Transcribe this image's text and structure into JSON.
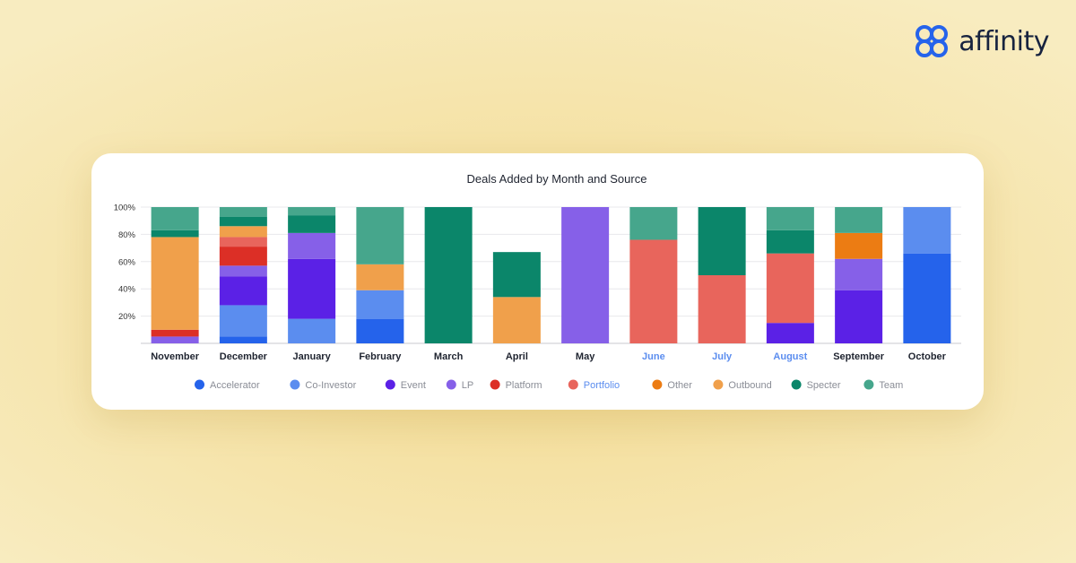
{
  "brand": {
    "name": "affinity",
    "logo_icon": "affinity-logo-icon",
    "color": "#2563eb"
  },
  "chart_data": {
    "type": "bar",
    "stacked": true,
    "title": "Deals Added by Month and Source",
    "xlabel": "",
    "ylabel": "",
    "ylim": [
      0,
      100
    ],
    "yticks": [
      "20%",
      "40%",
      "60%",
      "80%",
      "100%"
    ],
    "grid": true,
    "legend_position": "bottom",
    "categories": [
      "November",
      "December",
      "January",
      "February",
      "March",
      "April",
      "May",
      "June",
      "July",
      "August",
      "September",
      "October"
    ],
    "highlighted_categories": [
      "June",
      "July",
      "August"
    ],
    "highlighted_legend": [
      "Portfolio"
    ],
    "series": [
      {
        "name": "Accelerator",
        "color": "#2563eb",
        "values": [
          0,
          5,
          0,
          18,
          0,
          0,
          0,
          0,
          0,
          0,
          0,
          66
        ]
      },
      {
        "name": "Co-Investor",
        "color": "#5b8def",
        "values": [
          0,
          23,
          18,
          21,
          0,
          0,
          0,
          0,
          0,
          0,
          0,
          34
        ]
      },
      {
        "name": "Event",
        "color": "#5b21e6",
        "values": [
          0,
          21,
          44,
          0,
          0,
          0,
          0,
          0,
          0,
          15,
          39,
          0
        ]
      },
      {
        "name": "LP",
        "color": "#8660e8",
        "values": [
          5,
          8,
          19,
          0,
          0,
          0,
          100,
          0,
          0,
          0,
          23,
          0
        ]
      },
      {
        "name": "Platform",
        "color": "#dc2f26",
        "values": [
          5,
          14,
          0,
          0,
          0,
          0,
          0,
          0,
          0,
          0,
          0,
          0
        ]
      },
      {
        "name": "Portfolio",
        "color": "#e8655c",
        "values": [
          0,
          7,
          0,
          0,
          0,
          0,
          0,
          76,
          50,
          51,
          0,
          0
        ]
      },
      {
        "name": "Other",
        "color": "#ec7c13",
        "values": [
          0,
          0,
          0,
          0,
          0,
          0,
          0,
          0,
          0,
          0,
          19,
          0
        ]
      },
      {
        "name": "Outbound",
        "color": "#f0a04b",
        "values": [
          68,
          8,
          0,
          19,
          0,
          34,
          0,
          0,
          0,
          0,
          0,
          0
        ]
      },
      {
        "name": "Specter",
        "color": "#0b866a",
        "values": [
          5,
          7,
          13,
          0,
          100,
          33,
          0,
          0,
          50,
          17,
          0,
          0
        ]
      },
      {
        "name": "Team",
        "color": "#46a68c",
        "values": [
          17,
          7,
          6,
          42,
          0,
          0,
          0,
          24,
          0,
          17,
          19,
          0
        ]
      }
    ]
  }
}
